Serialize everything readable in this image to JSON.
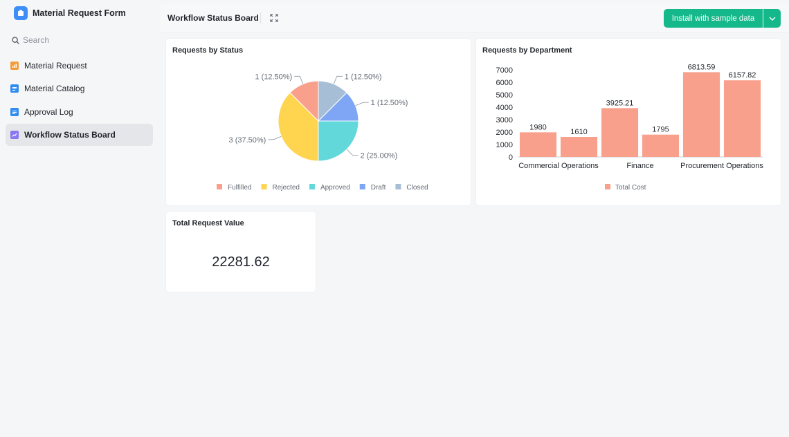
{
  "app": {
    "title": "Material Request Form"
  },
  "sidebar": {
    "search_placeholder": "Search",
    "items": [
      {
        "label": "Material Request",
        "icon": "form-icon",
        "color": "#f29c39"
      },
      {
        "label": "Material Catalog",
        "icon": "table-icon",
        "color": "#2f8cf0"
      },
      {
        "label": "Approval Log",
        "icon": "table-icon",
        "color": "#2f8cf0"
      },
      {
        "label": "Workflow Status Board",
        "icon": "dashboard-icon",
        "color": "#8a76f0",
        "active": true
      }
    ]
  },
  "toolbar": {
    "title": "Workflow Status Board",
    "install_label": "Install with sample data",
    "accent": "#14b88a"
  },
  "cards": {
    "status": {
      "title": "Requests by Status"
    },
    "department": {
      "title": "Requests by Department"
    },
    "total": {
      "title": "Total Request Value",
      "value": "22281.62"
    }
  },
  "chart_data": [
    {
      "type": "pie",
      "title": "Requests by Status",
      "categories": [
        "Fulfilled",
        "Rejected",
        "Approved",
        "Draft",
        "Closed"
      ],
      "values": [
        1,
        3,
        2,
        1,
        1
      ],
      "labels": [
        "1 (12.50%)",
        "3 (37.50%)",
        "2 (25.00%)",
        "1 (12.50%)",
        "1 (12.50%)"
      ],
      "colors": [
        "#f9a08d",
        "#ffd54f",
        "#62d8db",
        "#7ea6f4",
        "#a7bfd6"
      ],
      "legend": "bottom"
    },
    {
      "type": "bar",
      "title": "Requests by Department",
      "x_tick_labels": [
        "Commercial Operations",
        "Finance",
        "Procurement Operations"
      ],
      "values": [
        1980,
        1610,
        3925.21,
        1795,
        6813.59,
        6157.82
      ],
      "data_labels": [
        "1980",
        "1610",
        "3925.21",
        "1795",
        "6813.59",
        "6157.82"
      ],
      "series": [
        {
          "name": "Total Cost",
          "color": "#f9a08d"
        }
      ],
      "yticks": [
        "7000",
        "6000",
        "5000",
        "4000",
        "3000",
        "2000",
        "1000",
        "0"
      ],
      "ylim": [
        0,
        7000
      ],
      "legend": "bottom",
      "grid": false
    }
  ]
}
